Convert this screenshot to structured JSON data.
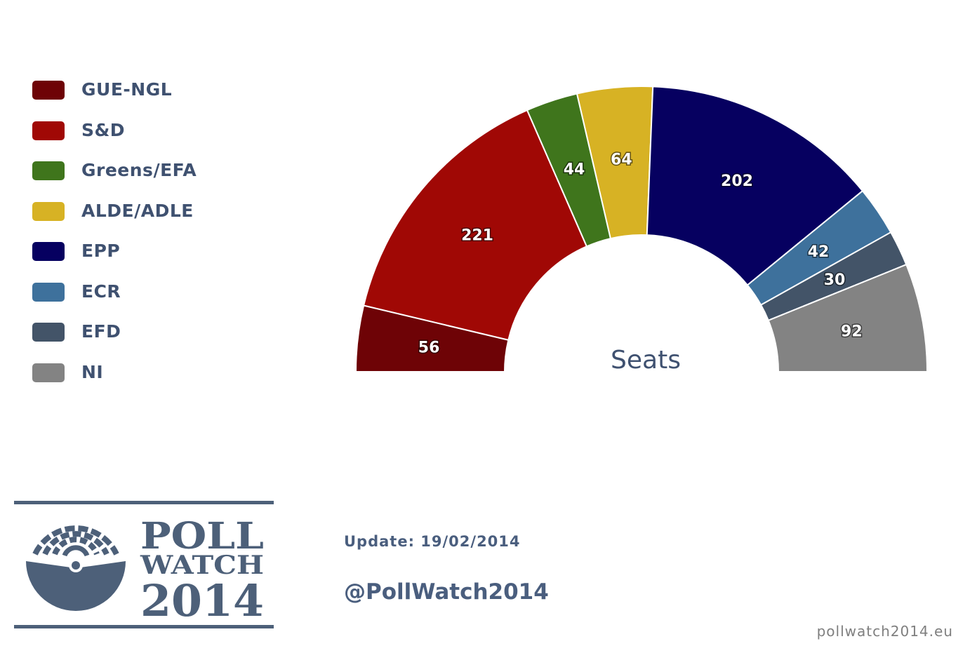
{
  "chart_data": {
    "type": "pie",
    "subtype": "parliament-hemicycle",
    "center_label": "Seats",
    "legend_position": "left",
    "categories": [
      "GUE-NGL",
      "S&D",
      "Greens/EFA",
      "ALDE/ADLE",
      "EPP",
      "ECR",
      "EFD",
      "NI"
    ],
    "values": [
      56,
      221,
      44,
      64,
      202,
      42,
      30,
      92
    ],
    "colors": [
      "#6e0306",
      "#a00805",
      "#3f751c",
      "#d7b224",
      "#060060",
      "#3e719c",
      "#435468",
      "#838383"
    ]
  },
  "footer": {
    "update": "Update: 19/02/2014",
    "handle": "@PollWatch2014",
    "site": "pollwatch2014.eu"
  },
  "logo": {
    "line1": "POLL",
    "line2": "WATCH",
    "line3": "2014",
    "color": "#4d6079"
  }
}
